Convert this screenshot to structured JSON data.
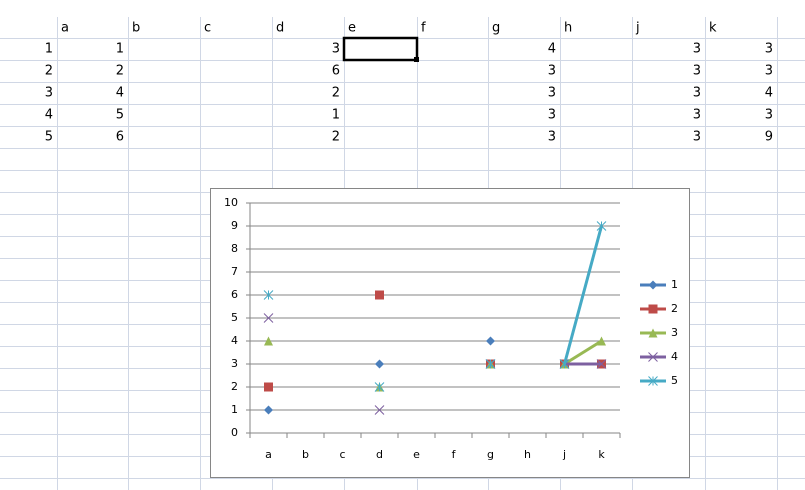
{
  "sheet": {
    "columns": [
      "a",
      "b",
      "c",
      "d",
      "e",
      "f",
      "g",
      "h",
      "j",
      "k"
    ],
    "rows": [
      [
        1,
        1,
        null,
        null,
        3,
        null,
        null,
        4,
        null,
        3,
        3
      ],
      [
        2,
        2,
        null,
        null,
        6,
        null,
        null,
        3,
        null,
        3,
        3
      ],
      [
        3,
        4,
        null,
        null,
        2,
        null,
        null,
        3,
        null,
        3,
        4
      ],
      [
        4,
        5,
        null,
        null,
        1,
        null,
        null,
        3,
        null,
        3,
        3
      ],
      [
        5,
        6,
        null,
        null,
        2,
        null,
        null,
        3,
        null,
        3,
        9
      ]
    ]
  },
  "chart_data": {
    "type": "line",
    "categories": [
      "a",
      "b",
      "c",
      "d",
      "e",
      "f",
      "g",
      "h",
      "j",
      "k"
    ],
    "ylim": [
      0,
      10
    ],
    "yticks": [
      0,
      1,
      2,
      3,
      4,
      5,
      6,
      7,
      8,
      9,
      10
    ],
    "grid": true,
    "legend": "right",
    "series": [
      {
        "name": "1",
        "color": "#4a7ebb",
        "marker": "diamond",
        "values": [
          1,
          null,
          null,
          3,
          null,
          null,
          4,
          null,
          3,
          3
        ]
      },
      {
        "name": "2",
        "color": "#be4b48",
        "marker": "square",
        "values": [
          2,
          null,
          null,
          6,
          null,
          null,
          3,
          null,
          3,
          3
        ]
      },
      {
        "name": "3",
        "color": "#98b954",
        "marker": "triangle",
        "values": [
          4,
          null,
          null,
          2,
          null,
          null,
          3,
          null,
          3,
          4
        ]
      },
      {
        "name": "4",
        "color": "#7d60a0",
        "marker": "x",
        "values": [
          5,
          null,
          null,
          1,
          null,
          null,
          3,
          null,
          3,
          3
        ]
      },
      {
        "name": "5",
        "color": "#46aac5",
        "marker": "star",
        "values": [
          6,
          null,
          null,
          2,
          null,
          null,
          3,
          null,
          3,
          9
        ]
      }
    ]
  }
}
